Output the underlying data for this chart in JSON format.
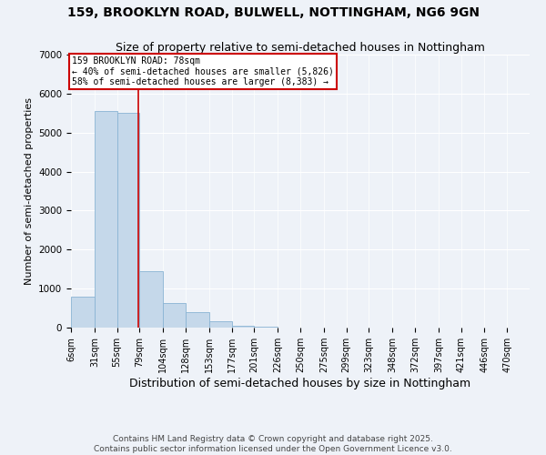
{
  "title": "159, BROOKLYN ROAD, BULWELL, NOTTINGHAM, NG6 9GN",
  "subtitle": "Size of property relative to semi-detached houses in Nottingham",
  "xlabel": "Distribution of semi-detached houses by size in Nottingham",
  "ylabel": "Number of semi-detached properties",
  "footer_line1": "Contains HM Land Registry data © Crown copyright and database right 2025.",
  "footer_line2": "Contains public sector information licensed under the Open Government Licence v3.0.",
  "property_size": 78,
  "annotation_text": "159 BROOKLYN ROAD: 78sqm\n← 40% of semi-detached houses are smaller (5,826)\n58% of semi-detached houses are larger (8,383) →",
  "bin_edges": [
    6,
    31,
    55,
    79,
    104,
    128,
    153,
    177,
    201,
    226,
    250,
    275,
    299,
    323,
    348,
    372,
    397,
    421,
    446,
    470,
    494
  ],
  "bar_heights": [
    800,
    5550,
    5500,
    1450,
    620,
    390,
    160,
    55,
    30,
    10,
    5,
    3,
    2,
    1,
    1,
    1,
    1,
    1,
    1,
    1
  ],
  "bar_color": "#c5d8ea",
  "bar_edge_color": "#8ab4d4",
  "line_color": "#cc0000",
  "annotation_box_color": "#cc0000",
  "background_color": "#eef2f8",
  "ylim": [
    0,
    7000
  ],
  "title_fontsize": 10,
  "subtitle_fontsize": 9,
  "xlabel_fontsize": 9,
  "ylabel_fontsize": 8,
  "tick_fontsize": 7,
  "footer_fontsize": 6.5
}
